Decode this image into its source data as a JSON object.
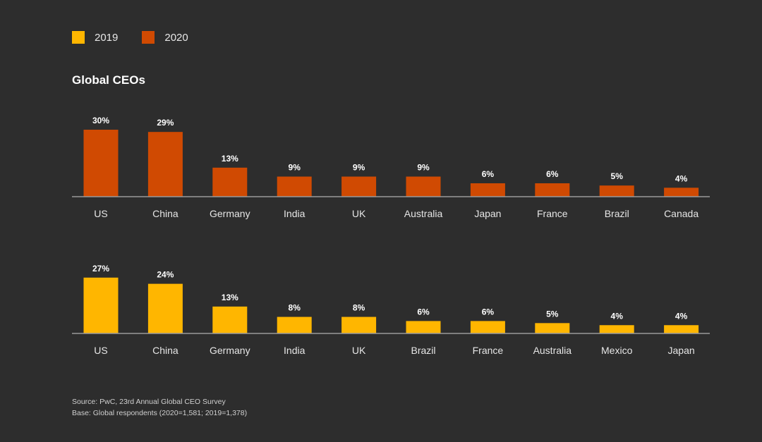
{
  "legend": {
    "items": [
      {
        "label": "2019",
        "color": "#ffb600"
      },
      {
        "label": "2020",
        "color": "#d04a02"
      }
    ]
  },
  "title": "Global CEOs",
  "chart_data": [
    {
      "type": "bar",
      "series_name": "2020",
      "color": "#d04a02",
      "categories": [
        "US",
        "China",
        "Germany",
        "India",
        "UK",
        "Australia",
        "Japan",
        "France",
        "Brazil",
        "Canada"
      ],
      "values": [
        30,
        29,
        13,
        9,
        9,
        9,
        6,
        6,
        5,
        4
      ],
      "labels": [
        "30%",
        "29%",
        "13%",
        "9%",
        "9%",
        "9%",
        "6%",
        "6%",
        "5%",
        "4%"
      ],
      "ylim": [
        0,
        30
      ]
    },
    {
      "type": "bar",
      "series_name": "2019",
      "color": "#ffb600",
      "categories": [
        "US",
        "China",
        "Germany",
        "India",
        "UK",
        "Brazil",
        "France",
        "Australia",
        "Mexico",
        "Japan"
      ],
      "values": [
        27,
        24,
        13,
        8,
        8,
        6,
        6,
        5,
        4,
        4
      ],
      "labels": [
        "27%",
        "24%",
        "13%",
        "8%",
        "8%",
        "6%",
        "6%",
        "5%",
        "4%",
        "4%"
      ],
      "ylim": [
        0,
        30
      ]
    }
  ],
  "footer": {
    "source": "Source: PwC, 23rd Annual Global CEO Survey",
    "base": "Base: Global respondents (2020=1,581; 2019=1,378)"
  }
}
